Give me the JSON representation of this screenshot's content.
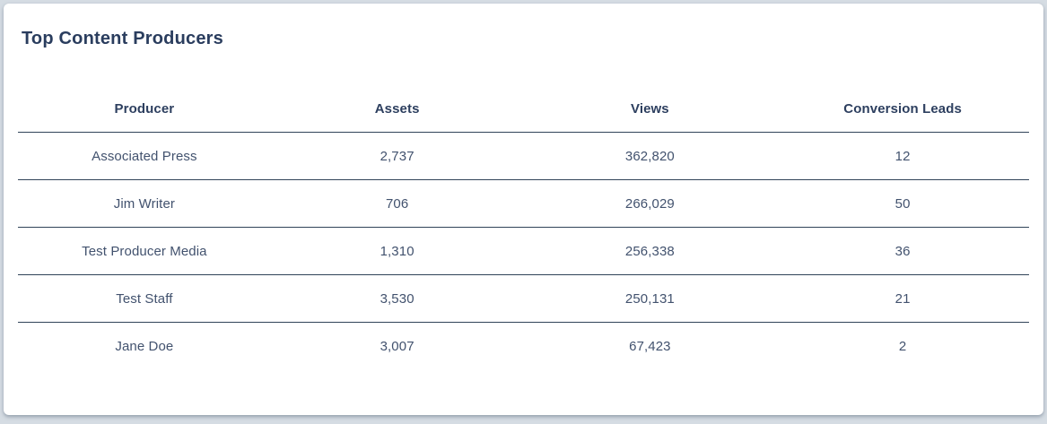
{
  "card": {
    "title": "Top Content Producers"
  },
  "table": {
    "columns": [
      "Producer",
      "Assets",
      "Views",
      "Conversion Leads"
    ],
    "rows": [
      [
        "Associated Press",
        "2,737",
        "362,820",
        "12"
      ],
      [
        "Jim Writer",
        "706",
        "266,029",
        "50"
      ],
      [
        "Test Producer Media",
        "1,310",
        "256,338",
        "36"
      ],
      [
        "Test Staff",
        "3,530",
        "250,131",
        "21"
      ],
      [
        "Jane Doe",
        "3,007",
        "67,423",
        "2"
      ]
    ]
  },
  "colors": {
    "page_background": "#d5dce3",
    "card_background": "#ffffff",
    "title_text": "#2a3d5e",
    "header_text": "#2d3f5f",
    "cell_text": "#42526e",
    "divider": "#304358"
  }
}
